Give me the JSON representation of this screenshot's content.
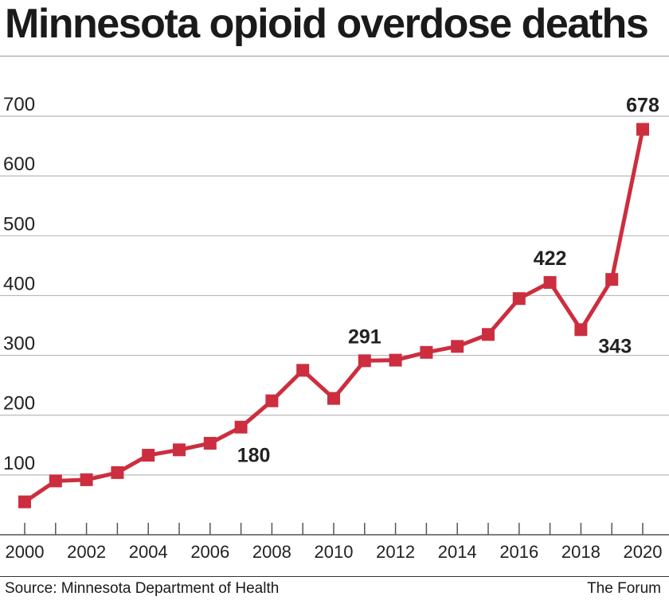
{
  "chart_data": {
    "type": "line",
    "title": "Minnesota opioid overdose deaths",
    "xlabel": "",
    "ylabel": "",
    "x": [
      2000,
      2001,
      2002,
      2003,
      2004,
      2005,
      2006,
      2007,
      2008,
      2009,
      2010,
      2011,
      2012,
      2013,
      2014,
      2015,
      2016,
      2017,
      2018,
      2019,
      2020
    ],
    "series": [
      {
        "name": "Opioid overdose deaths",
        "values": [
          55,
          90,
          92,
          104,
          133,
          142,
          153,
          180,
          224,
          275,
          228,
          291,
          292,
          305,
          315,
          335,
          395,
          422,
          343,
          427,
          678
        ]
      }
    ],
    "xticks": [
      "2000",
      "2002",
      "2004",
      "2006",
      "2008",
      "2010",
      "2012",
      "2014",
      "2016",
      "2018",
      "2020"
    ],
    "yticks": [
      "100",
      "200",
      "300",
      "400",
      "500",
      "600",
      "700"
    ],
    "ylim": [
      0,
      700
    ],
    "grid": true,
    "color": "#cc2e3f",
    "annotations": [
      {
        "year": 2007,
        "label": "180",
        "place": "below"
      },
      {
        "year": 2011,
        "label": "291",
        "place": "above"
      },
      {
        "year": 2017,
        "label": "422",
        "place": "above"
      },
      {
        "year": 2018,
        "label": "343",
        "place": "right"
      },
      {
        "year": 2020,
        "label": "678",
        "place": "above"
      }
    ]
  },
  "footer": {
    "source": "Source: Minnesota Department of Health",
    "credit": "The Forum"
  }
}
